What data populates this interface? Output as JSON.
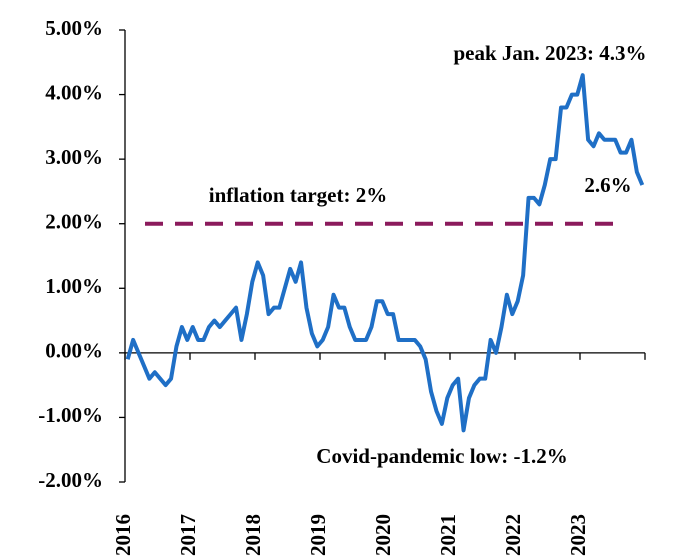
{
  "chart_data": {
    "type": "line",
    "categories": [
      "2016",
      null,
      null,
      null,
      null,
      null,
      null,
      null,
      null,
      null,
      null,
      null,
      "2017",
      null,
      null,
      null,
      null,
      null,
      null,
      null,
      null,
      null,
      null,
      null,
      "2018",
      null,
      null,
      null,
      null,
      null,
      null,
      null,
      null,
      null,
      null,
      null,
      "2019",
      null,
      null,
      null,
      null,
      null,
      null,
      null,
      null,
      null,
      null,
      null,
      "2020",
      null,
      null,
      null,
      null,
      null,
      null,
      null,
      null,
      null,
      null,
      null,
      "2021",
      null,
      null,
      null,
      null,
      null,
      null,
      null,
      null,
      null,
      null,
      null,
      "2022",
      null,
      null,
      null,
      null,
      null,
      null,
      null,
      null,
      null,
      null,
      null,
      "2023",
      null,
      null,
      null,
      null,
      null,
      null,
      null,
      null,
      null,
      null,
      null
    ],
    "series": [
      {
        "color": "#1f6fc6",
        "values": [
          -0.1,
          0.2,
          0,
          -0.2,
          -0.4,
          -0.3,
          -0.4,
          -0.5,
          -0.4,
          0.1,
          0.4,
          0.2,
          0.4,
          0.2,
          0.2,
          0.4,
          0.5,
          0.4,
          0.5,
          0.6,
          0.7,
          0.2,
          0.6,
          1.1,
          1.4,
          1.2,
          0.6,
          0.7,
          0.7,
          1.0,
          1.3,
          1.1,
          1.4,
          0.7,
          0.3,
          0.1,
          0.2,
          0.4,
          0.9,
          0.7,
          0.7,
          0.4,
          0.2,
          0.2,
          0.2,
          0.4,
          0.8,
          0.8,
          0.6,
          0.6,
          0.2,
          0.2,
          0.2,
          0.2,
          0.1,
          -0.1,
          -0.6,
          -0.9,
          -1.1,
          -0.7,
          -0.5,
          -0.4,
          -1.2,
          -0.7,
          -0.5,
          -0.4,
          -0.4,
          0.2,
          0.0,
          0.4,
          0.9,
          0.6,
          0.8,
          1.2,
          2.4,
          2.4,
          2.3,
          2.6,
          3.0,
          3.0,
          3.8,
          3.8,
          4.0,
          4.0,
          4.3,
          3.3,
          3.2,
          3.4,
          3.3,
          3.3,
          3.3,
          3.1,
          3.1,
          3.3,
          2.8,
          2.6
        ]
      }
    ],
    "target": 2,
    "target_color": "#8b1a5c",
    "annotations": [
      "peak Jan. 2023: 4.3%",
      "inflation target: 2%",
      "2.6%",
      "Covid-pandemic low: -1.2%"
    ],
    "ylim": [
      -2,
      5
    ],
    "yticks": [
      {
        "value": -2,
        "label": "-2.00%"
      },
      {
        "value": -1,
        "label": "-1.00%"
      },
      {
        "value": 0,
        "label": "0.00%"
      },
      {
        "value": 1,
        "label": "1.00%"
      },
      {
        "value": 2,
        "label": "2.00%"
      },
      {
        "value": 3,
        "label": "3.00%"
      },
      {
        "value": 4,
        "label": "4.00%"
      },
      {
        "value": 5,
        "label": "5.00%"
      }
    ]
  }
}
